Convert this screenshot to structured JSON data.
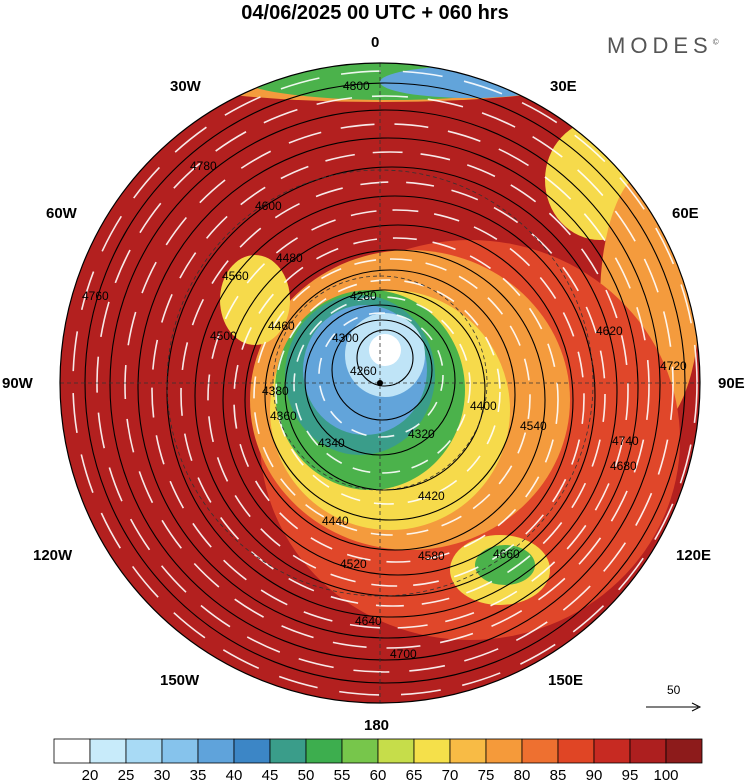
{
  "title": "04/06/2025  00 UTC  + 060 hrs",
  "brand": "MODES",
  "brand_mark": "©",
  "longitude_labels": {
    "n": "0",
    "nne": "30E",
    "ene": "60E",
    "e": "90E",
    "ese": "120E",
    "sse": "150E",
    "s": "180",
    "ssw": "150W",
    "wsw": "120W",
    "w": "90W",
    "wnw": "60W",
    "nnw": "30W"
  },
  "vector_reference": {
    "label": "50"
  },
  "contour_labels": [
    "4800",
    "4780",
    "4760",
    "4740",
    "4720",
    "4700",
    "4680",
    "4660",
    "4640",
    "4620",
    "4600",
    "4580",
    "4560",
    "4540",
    "4520",
    "4500",
    "4480",
    "4460",
    "4440",
    "4420",
    "4400",
    "4380",
    "4360",
    "4340",
    "4320",
    "4300",
    "4280",
    "4260"
  ],
  "colorbar": {
    "ticks": [
      "20",
      "25",
      "30",
      "35",
      "40",
      "45",
      "50",
      "55",
      "60",
      "65",
      "70",
      "75",
      "80",
      "85",
      "90",
      "95",
      "100"
    ],
    "colors": [
      "#ffffff",
      "#c8ebfa",
      "#a8daf5",
      "#86c3ec",
      "#5fa3db",
      "#3c86c6",
      "#3a9d8a",
      "#3dae4e",
      "#77c64b",
      "#c6dd4a",
      "#f5e04a",
      "#f8bb45",
      "#f59a3a",
      "#ee7030",
      "#e04525",
      "#c72a22",
      "#ad1f1f",
      "#8d1b1b"
    ]
  },
  "colors": {
    "outer_ring": "#b3201f",
    "mid_ring": "#e0472a",
    "orange": "#f49b3d",
    "yellow": "#f6da4b",
    "green": "#4bb24b",
    "teal": "#3a9d8a",
    "blue": "#62a4da",
    "light_blue": "#bfe4f7"
  }
}
